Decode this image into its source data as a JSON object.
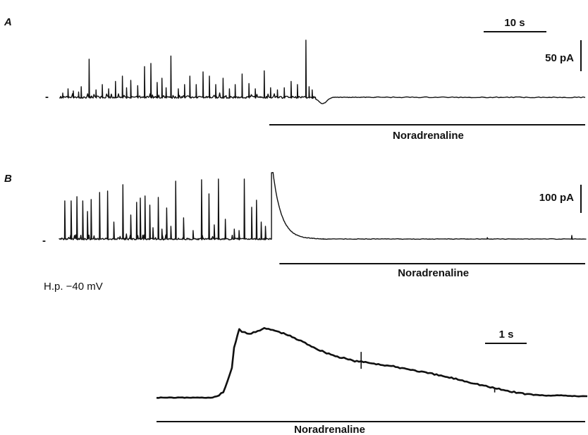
{
  "chart_data": [
    {
      "type": "line",
      "panel": "A",
      "description_x": "time (s)",
      "baseline_marker": "-",
      "scale_time": {
        "value": 10,
        "label": "10 s"
      },
      "scale_current": {
        "value": 50,
        "label": "50 pA"
      },
      "application_bar": {
        "label": "Noradrenaline",
        "start_s": 39.7,
        "end_s": 100
      },
      "spikes": [
        {
          "t": 0.5,
          "amp": 4
        },
        {
          "t": 1.5,
          "amp": 8
        },
        {
          "t": 2.5,
          "amp": 6
        },
        {
          "t": 3.5,
          "amp": 5
        },
        {
          "t": 4.0,
          "amp": 10
        },
        {
          "t": 5.5,
          "amp": 36
        },
        {
          "t": 6.8,
          "amp": 7
        },
        {
          "t": 8.0,
          "amp": 12
        },
        {
          "t": 9.2,
          "amp": 8
        },
        {
          "t": 10.5,
          "amp": 15
        },
        {
          "t": 11.8,
          "amp": 20
        },
        {
          "t": 12.6,
          "amp": 9
        },
        {
          "t": 13.4,
          "amp": 16
        },
        {
          "t": 14.7,
          "amp": 11
        },
        {
          "t": 16.0,
          "amp": 29
        },
        {
          "t": 17.2,
          "amp": 32
        },
        {
          "t": 18.4,
          "amp": 14
        },
        {
          "t": 19.3,
          "amp": 18
        },
        {
          "t": 20.1,
          "amp": 9
        },
        {
          "t": 21.0,
          "amp": 39
        },
        {
          "t": 22.4,
          "amp": 8
        },
        {
          "t": 23.6,
          "amp": 12
        },
        {
          "t": 24.6,
          "amp": 20
        },
        {
          "t": 25.8,
          "amp": 12
        },
        {
          "t": 27.1,
          "amp": 24
        },
        {
          "t": 28.3,
          "amp": 20
        },
        {
          "t": 29.5,
          "amp": 12
        },
        {
          "t": 30.9,
          "amp": 18
        },
        {
          "t": 32.1,
          "amp": 8
        },
        {
          "t": 33.2,
          "amp": 12
        },
        {
          "t": 34.5,
          "amp": 22
        },
        {
          "t": 35.8,
          "amp": 13
        },
        {
          "t": 37.0,
          "amp": 8
        },
        {
          "t": 38.7,
          "amp": 25
        },
        {
          "t": 39.9,
          "amp": 9
        },
        {
          "t": 41.2,
          "amp": 7
        },
        {
          "t": 42.5,
          "amp": 9
        },
        {
          "t": 43.8,
          "amp": 15
        },
        {
          "t": 45.0,
          "amp": 12
        },
        {
          "t": 46.6,
          "amp": 54
        },
        {
          "t": 47.2,
          "amp": 10
        },
        {
          "t": 47.8,
          "amp": 7
        }
      ],
      "trough": {
        "t": 49.8,
        "amp": -6
      },
      "t_range": [
        0,
        100
      ]
    },
    {
      "type": "line",
      "panel": "B",
      "description_x": "time (s)",
      "baseline_marker": "-",
      "scale_current": {
        "value": 100,
        "label": "100 pA"
      },
      "application_bar": {
        "label": "Noradrenaline",
        "start_s": 41.7,
        "end_s": 100
      },
      "spikes": [
        {
          "t": 1.0,
          "amp": 54
        },
        {
          "t": 2.2,
          "amp": 54
        },
        {
          "t": 3.3,
          "amp": 60
        },
        {
          "t": 4.4,
          "amp": 54
        },
        {
          "t": 5.3,
          "amp": 39
        },
        {
          "t": 6.0,
          "amp": 56
        },
        {
          "t": 7.6,
          "amp": 66
        },
        {
          "t": 9.1,
          "amp": 68
        },
        {
          "t": 10.3,
          "amp": 24
        },
        {
          "t": 12.0,
          "amp": 77
        },
        {
          "t": 13.5,
          "amp": 34
        },
        {
          "t": 14.6,
          "amp": 52
        },
        {
          "t": 15.3,
          "amp": 58
        },
        {
          "t": 16.2,
          "amp": 61
        },
        {
          "t": 17.1,
          "amp": 48
        },
        {
          "t": 17.7,
          "amp": 16
        },
        {
          "t": 18.7,
          "amp": 59
        },
        {
          "t": 19.4,
          "amp": 14
        },
        {
          "t": 20.3,
          "amp": 44
        },
        {
          "t": 21.1,
          "amp": 18
        },
        {
          "t": 22.0,
          "amp": 82
        },
        {
          "t": 23.5,
          "amp": 30
        },
        {
          "t": 25.3,
          "amp": 12
        },
        {
          "t": 26.9,
          "amp": 84
        },
        {
          "t": 28.3,
          "amp": 64
        },
        {
          "t": 29.3,
          "amp": 20
        },
        {
          "t": 30.1,
          "amp": 85
        },
        {
          "t": 31.4,
          "amp": 28
        },
        {
          "t": 33.1,
          "amp": 14
        },
        {
          "t": 34.0,
          "amp": 12
        },
        {
          "t": 35.0,
          "amp": 85
        },
        {
          "t": 36.4,
          "amp": 45
        },
        {
          "t": 37.3,
          "amp": 55
        },
        {
          "t": 38.2,
          "amp": 24
        },
        {
          "t": 39.0,
          "amp": 18
        }
      ],
      "response": {
        "onset_t": 40.2,
        "peak_t": 40.5,
        "peak_amp": 94,
        "tau_s": 1.6,
        "end_t": 46
      },
      "late_spikes": [
        {
          "t": 81.0,
          "amp": 2
        },
        {
          "t": 97.0,
          "amp": 5
        }
      ],
      "t_range": [
        0,
        100
      ]
    },
    {
      "type": "line",
      "panel": "inset",
      "holding_potential": "H.p. −40 mV",
      "scale_time": {
        "value": 1,
        "label": "1 s"
      },
      "application_bar": {
        "label": "Noradrenaline",
        "start_s": 0,
        "end_s": 10
      },
      "trace_points": [
        [
          0.0,
          0
        ],
        [
          1.3,
          0
        ],
        [
          1.45,
          3
        ],
        [
          1.55,
          8
        ],
        [
          1.65,
          24
        ],
        [
          1.75,
          42
        ],
        [
          1.8,
          70
        ],
        [
          1.88,
          88
        ],
        [
          1.92,
          98
        ],
        [
          1.98,
          94
        ],
        [
          2.05,
          92
        ],
        [
          2.15,
          90
        ],
        [
          2.3,
          94
        ],
        [
          2.5,
          98
        ],
        [
          2.7,
          96
        ],
        [
          3.0,
          90
        ],
        [
          3.4,
          79
        ],
        [
          3.8,
          67
        ],
        [
          4.2,
          58
        ],
        [
          4.6,
          52
        ],
        [
          5.0,
          49
        ],
        [
          5.4,
          45
        ],
        [
          5.8,
          41
        ],
        [
          6.2,
          36
        ],
        [
          6.6,
          31
        ],
        [
          7.0,
          26
        ],
        [
          7.4,
          20
        ],
        [
          7.8,
          14
        ],
        [
          8.2,
          9
        ],
        [
          8.6,
          5
        ],
        [
          9.0,
          3
        ],
        [
          9.4,
          3
        ],
        [
          9.8,
          2
        ],
        [
          10.0,
          2
        ]
      ],
      "artifacts": [
        {
          "t": 4.75,
          "up": 14,
          "down": 10
        },
        {
          "t": 7.85,
          "up": 0,
          "down": 6
        }
      ],
      "t_range": [
        0,
        10
      ]
    }
  ]
}
